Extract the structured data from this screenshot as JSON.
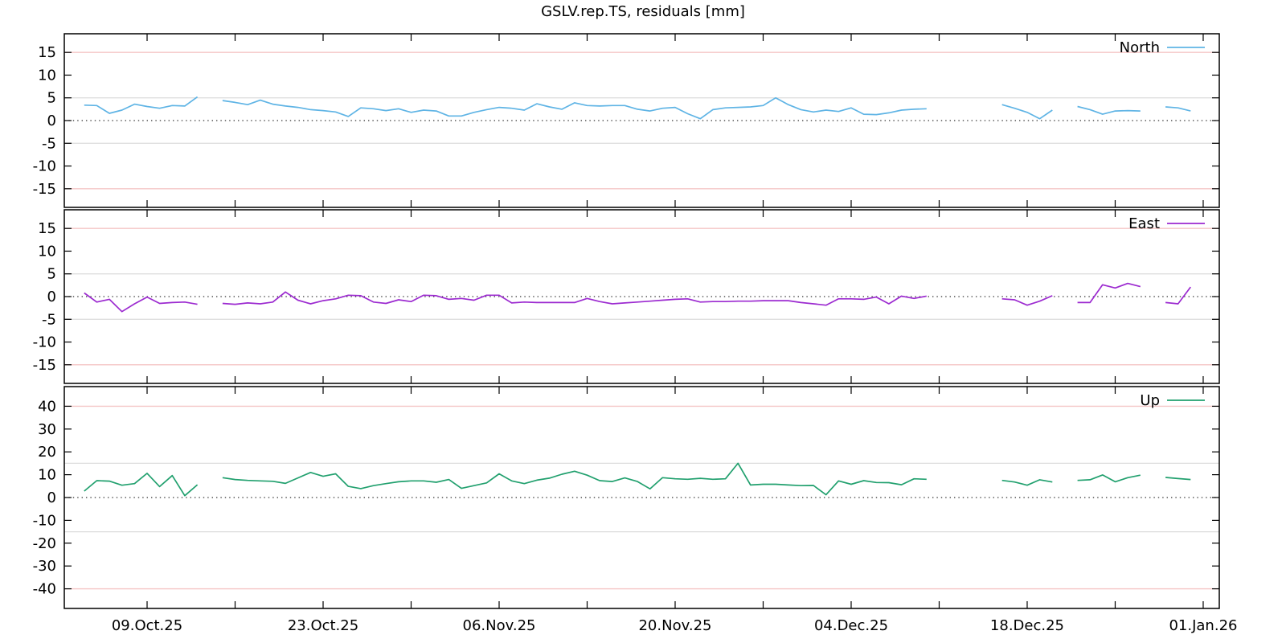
{
  "chart_data": {
    "type": "line",
    "title": "GSLV.rep.TS, residuals [mm]",
    "legend_position": "top-right-inside-each-panel",
    "grid": "horizontal reference lines only",
    "colors": {
      "north_line": "#5fb4e5",
      "east_line": "#9c2ad0",
      "up_line": "#21a06e",
      "outer_limit_line": "#f5c6c6",
      "inner_limit_line": "#dcdcdc",
      "zero_dotted_line": "#333333",
      "frame": "#000000"
    },
    "x_axis": {
      "unit": "days",
      "domain_days": [
        -1.585,
        90.28
      ],
      "major_ticks": [
        {
          "label": "09.Oct.25",
          "day": 5
        },
        {
          "label": "23.Oct.25",
          "day": 19
        },
        {
          "label": "06.Nov.25",
          "day": 33
        },
        {
          "label": "20.Nov.25",
          "day": 47
        },
        {
          "label": "04.Dec.25",
          "day": 61
        },
        {
          "label": "18.Dec.25",
          "day": 75
        },
        {
          "label": "01.Jan.26",
          "day": 89
        }
      ],
      "minor_tick_days": [
        12,
        26,
        40,
        54,
        68,
        82
      ]
    },
    "panels": [
      {
        "name": "North",
        "color": "#5fb4e5",
        "ylim": [
          -19.1,
          19.1
        ],
        "yticks": [
          15,
          10,
          5,
          0,
          -5,
          -10,
          -15
        ],
        "pink_lines": [
          15,
          -15
        ],
        "gray_lines": [
          5,
          -5
        ],
        "zero_line": true,
        "values": [
          3.4,
          3.3,
          1.6,
          2.3,
          3.6,
          3.1,
          2.7,
          3.3,
          3.2,
          5.2,
          null,
          4.4,
          4.0,
          3.5,
          4.5,
          3.6,
          3.2,
          2.9,
          2.4,
          2.2,
          1.9,
          0.9,
          2.8,
          2.6,
          2.2,
          2.6,
          1.8,
          2.3,
          2.1,
          1.0,
          1.0,
          1.8,
          2.4,
          2.9,
          2.7,
          2.3,
          3.7,
          3.0,
          2.5,
          3.9,
          3.3,
          3.2,
          3.3,
          3.3,
          2.5,
          2.1,
          2.7,
          2.9,
          1.5,
          0.4,
          2.4,
          2.8,
          2.9,
          3.0,
          3.3,
          5.0,
          3.5,
          2.4,
          1.9,
          2.3,
          2.0,
          2.8,
          1.4,
          1.3,
          1.7,
          2.3,
          2.5,
          2.6,
          null,
          null,
          null,
          null,
          null,
          3.5,
          2.7,
          1.8,
          0.4,
          2.3,
          null,
          3.1,
          2.4,
          1.4,
          2.1,
          2.2,
          2.1,
          null,
          3.0,
          2.8,
          2.1
        ]
      },
      {
        "name": "East",
        "color": "#9c2ad0",
        "ylim": [
          -19.1,
          19.1
        ],
        "yticks": [
          15,
          10,
          5,
          0,
          -5,
          -10,
          -15
        ],
        "pink_lines": [
          15,
          -15
        ],
        "gray_lines": [
          5,
          -5
        ],
        "zero_line": true,
        "values": [
          0.8,
          -1.2,
          -0.6,
          -3.3,
          -1.6,
          -0.1,
          -1.5,
          -1.3,
          -1.2,
          -1.7,
          null,
          -1.5,
          -1.7,
          -1.4,
          -1.6,
          -1.2,
          1.0,
          -0.8,
          -1.6,
          -0.9,
          -0.5,
          0.3,
          0.2,
          -1.2,
          -1.5,
          -0.7,
          -1.1,
          0.3,
          0.2,
          -0.6,
          -0.4,
          -0.8,
          0.3,
          0.3,
          -1.4,
          -1.2,
          -1.3,
          -1.3,
          -1.3,
          -1.3,
          -0.4,
          -1.1,
          -1.6,
          -1.4,
          -1.2,
          -1.0,
          -0.8,
          -0.6,
          -0.5,
          -1.2,
          -1.1,
          -1.1,
          -1.0,
          -1.0,
          -0.9,
          -0.9,
          -0.9,
          -1.3,
          -1.6,
          -1.9,
          -0.5,
          -0.5,
          -0.6,
          -0.1,
          -1.6,
          0.1,
          -0.4,
          0.1,
          null,
          null,
          null,
          null,
          null,
          -0.5,
          -0.7,
          -1.9,
          -1.0,
          0.2,
          null,
          -1.3,
          -1.3,
          2.6,
          1.9,
          2.9,
          2.2,
          null,
          -1.3,
          -1.6,
          2.1
        ]
      },
      {
        "name": "Up",
        "color": "#21a06e",
        "ylim": [
          -48.6,
          48.6
        ],
        "yticks": [
          40,
          30,
          20,
          10,
          0,
          -10,
          -20,
          -30,
          -40
        ],
        "pink_lines": [
          40,
          -40
        ],
        "gray_lines": [
          15,
          -15
        ],
        "zero_line": true,
        "values": [
          2.8,
          7.4,
          7.2,
          5.4,
          6.1,
          10.6,
          4.8,
          9.6,
          0.8,
          5.6,
          null,
          8.7,
          7.9,
          7.5,
          7.3,
          7.1,
          6.2,
          8.6,
          11.0,
          9.3,
          10.4,
          4.9,
          3.9,
          5.2,
          6.1,
          6.9,
          7.3,
          7.3,
          6.7,
          7.9,
          4.0,
          5.2,
          6.4,
          10.4,
          7.3,
          6.1,
          7.6,
          8.5,
          10.2,
          11.5,
          9.8,
          7.4,
          7.0,
          8.6,
          7.0,
          3.8,
          8.7,
          8.2,
          8.0,
          8.4,
          8.0,
          8.2,
          15.0,
          5.5,
          5.8,
          5.8,
          5.5,
          5.2,
          5.3,
          1.2,
          7.3,
          5.8,
          7.4,
          6.6,
          6.5,
          5.6,
          8.2,
          8.0,
          null,
          null,
          null,
          null,
          null,
          7.5,
          6.8,
          5.4,
          7.8,
          6.8,
          null,
          7.5,
          7.8,
          9.9,
          6.9,
          8.7,
          9.8,
          null,
          8.8,
          8.3,
          7.9
        ]
      }
    ]
  }
}
